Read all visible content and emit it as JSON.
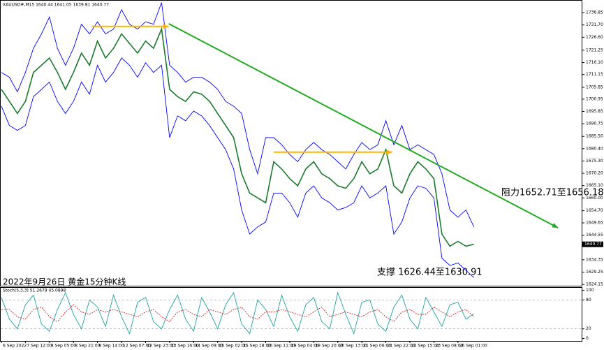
{
  "chart_data": [
    {
      "type": "line",
      "header": "XAUUSD#,M15  1640.44 1641.05 1639.81 1640.77",
      "title": "2022年9月26日 黄金15分钟K线",
      "annotations": [
        "阻力1652.71至1656.18",
        "支撑 1626.44至1630.91"
      ],
      "last_price": 1640.77,
      "categories": [
        "6 Sep 2022",
        null,
        null,
        "7 Sep 12:00",
        null,
        null,
        "8 Sep 05:00",
        null,
        null,
        "8 Sep 21:00",
        null,
        null,
        "9 Sep 14:00",
        null,
        null,
        "12 Sep 07:00",
        null,
        null,
        "12 Sep 23:00",
        null,
        null,
        "13 Sep 16:00",
        null,
        null,
        "14 Sep 09:00",
        null,
        null,
        "15 Sep 02:00",
        null,
        null,
        "15 Sep 18:00",
        null,
        null,
        "16 Sep 11:00",
        null,
        null,
        "19 Sep 04:00",
        null,
        null,
        "19 Sep 20:00",
        null,
        null,
        "20 Sep 13:00",
        null,
        null,
        "21 Sep 06:00",
        null,
        null,
        "21 Sep 22:00",
        null,
        null,
        "22 Sep 15:00",
        null,
        null,
        "23 Sep 08:00",
        null,
        null,
        "26 Sep 01:00",
        null,
        null
      ],
      "series": [
        {
          "color": "#0000ff",
          "values": [
            1712,
            1710,
            1704,
            1712,
            1722,
            1728,
            1735,
            1722,
            1715,
            1722,
            1732,
            1728,
            1733,
            1728,
            1730,
            1738,
            1732,
            1730,
            1733,
            1732,
            1741,
            1715,
            1712,
            1708,
            1710,
            1710,
            1708,
            1705,
            1700,
            1698,
            1695,
            1680,
            1670,
            1685,
            1685,
            1682,
            1678,
            1675,
            1680,
            1683,
            1680,
            1678,
            1675,
            1672,
            1678,
            1683,
            1680,
            1682,
            1692,
            1682,
            1690,
            1680,
            1682,
            1680,
            1678,
            1670,
            1655,
            1652,
            1655,
            1648
          ]
        },
        {
          "color": "#0000ff",
          "values": [
            1698,
            1690,
            1688,
            1690,
            1702,
            1705,
            1708,
            1700,
            1695,
            1700,
            1708,
            1703,
            1715,
            1708,
            1712,
            1718,
            1715,
            1710,
            1716,
            1712,
            1715,
            1685,
            1694,
            1692,
            1696,
            1694,
            1690,
            1685,
            1680,
            1672,
            1655,
            1645,
            1648,
            1650,
            1662,
            1662,
            1658,
            1652,
            1662,
            1665,
            1660,
            1658,
            1655,
            1656,
            1658,
            1665,
            1660,
            1662,
            1665,
            1645,
            1650,
            1660,
            1665,
            1664,
            1660,
            1635,
            1632,
            1633,
            1630,
            1627
          ]
        },
        {
          "color": "#1b7a2a",
          "values": [
            1705,
            1700,
            1695,
            1700,
            1712,
            1715,
            1718,
            1712,
            1705,
            1712,
            1720,
            1715,
            1725,
            1718,
            1722,
            1728,
            1724,
            1720,
            1725,
            1722,
            1730,
            1705,
            1702,
            1700,
            1704,
            1703,
            1700,
            1695,
            1690,
            1685,
            1670,
            1662,
            1660,
            1658,
            1675,
            1672,
            1668,
            1665,
            1672,
            1675,
            1670,
            1668,
            1665,
            1664,
            1668,
            1675,
            1670,
            1672,
            1680,
            1665,
            1662,
            1670,
            1675,
            1672,
            1668,
            1645,
            1640,
            1642,
            1640,
            1640.77
          ]
        }
      ],
      "lines": [
        {
          "color": "#ffb300",
          "x": [
            11.3,
            20.9
          ],
          "y": [
            1731.1,
            1731.1
          ]
        },
        {
          "color": "#ffb300",
          "x": [
            34,
            48.8
          ],
          "y": [
            1679,
            1679
          ]
        },
        {
          "color": "#22aa22",
          "x": [
            20.9,
            69.5
          ],
          "y": [
            1732.2,
            1647.6
          ]
        }
      ],
      "ylim": [
        1623.6,
        1741.75
      ],
      "yticks": [
        1736.85,
        {
          "value": 1731.7,
          "label": "1731.70"
        },
        {
          "value": 1726.6,
          "label": "1726.60"
        },
        1721.25,
        {
          "value": 1716.1,
          "label": "1716.10"
        },
        1711.15,
        1705.85,
        1700.95,
        1695.85,
        1690.75,
        {
          "value": 1685.5,
          "label": "1685.50"
        },
        {
          "value": 1680.4,
          "label": "1680.40"
        },
        {
          "value": 1675.3,
          "label": "1675.30"
        },
        {
          "value": 1670.2,
          "label": "1670.20"
        },
        {
          "value": 1665.1,
          "label": "1665.10"
        },
        {
          "value": 1660,
          "label": "1660.00"
        },
        {
          "value": 1654.7,
          "label": "1654.70"
        },
        1649.65,
        1644.55,
        1634.35,
        1629.25,
        1624.15
      ]
    },
    {
      "type": "line",
      "title": "Stoch(5,3,3) 51.2679 45.0898",
      "series": [
        {
          "color": "#20a0a0",
          "values": [
            85,
            40,
            20,
            70,
            90,
            30,
            15,
            60,
            95,
            50,
            20,
            80,
            65,
            25,
            90,
            45,
            10,
            75,
            85,
            35,
            20,
            60,
            90,
            40,
            15,
            85,
            55,
            20,
            70,
            95,
            30,
            10,
            80,
            60,
            25,
            90,
            45,
            15,
            70,
            85,
            35,
            20,
            95,
            50,
            10,
            75,
            80,
            30,
            15,
            65,
            90,
            40,
            20,
            85,
            55,
            25,
            70,
            75,
            40,
            51.2679
          ]
        },
        {
          "color": "#d02020",
          "dashed": true,
          "values": [
            60,
            60,
            45,
            40,
            60,
            65,
            45,
            35,
            55,
            70,
            55,
            50,
            60,
            55,
            60,
            55,
            50,
            45,
            55,
            60,
            45,
            35,
            55,
            60,
            50,
            45,
            60,
            55,
            50,
            60,
            65,
            45,
            40,
            55,
            55,
            60,
            55,
            50,
            45,
            55,
            65,
            45,
            50,
            55,
            50,
            45,
            55,
            60,
            45,
            35,
            55,
            60,
            50,
            50,
            65,
            55,
            45,
            55,
            60,
            45.0898
          ]
        }
      ],
      "ylim": [
        -5,
        105
      ],
      "yticks": [
        100,
        80,
        20,
        0
      ]
    }
  ]
}
